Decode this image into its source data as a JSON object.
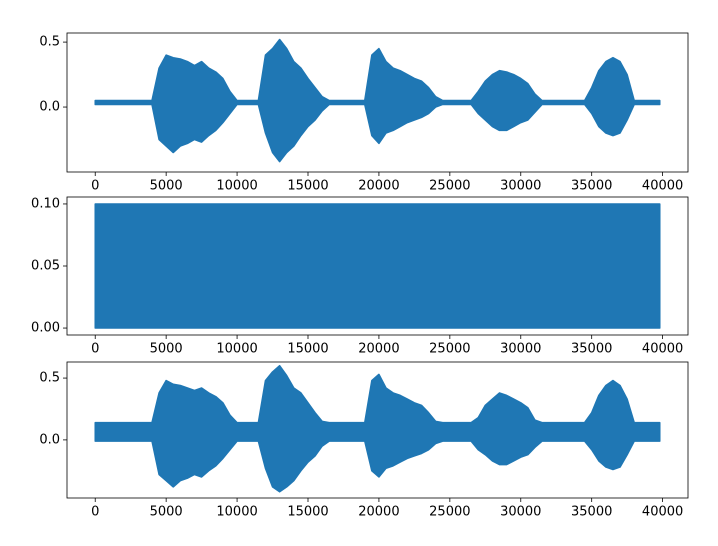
{
  "chart_data": [
    {
      "type": "band",
      "color": "#1f77b4",
      "xlim": [
        -1990,
        41790
      ],
      "xticks": [
        0,
        5000,
        10000,
        15000,
        20000,
        25000,
        30000,
        35000,
        40000
      ],
      "ylim": [
        -0.5,
        0.57
      ],
      "yticks": [
        {
          "value": 0,
          "label": "0.0"
        },
        0.5
      ],
      "x": [
        0,
        500,
        1000,
        1500,
        2000,
        2500,
        3000,
        3500,
        4000,
        4500,
        5000,
        5500,
        6000,
        6500,
        7000,
        7500,
        8000,
        8500,
        9000,
        9500,
        10000,
        10500,
        11000,
        11500,
        12000,
        12500,
        13000,
        13500,
        14000,
        14500,
        15000,
        15500,
        16000,
        16500,
        17000,
        17500,
        18000,
        18500,
        19000,
        19500,
        20000,
        20500,
        21000,
        21500,
        22000,
        22500,
        23000,
        23500,
        24000,
        24500,
        25000,
        25500,
        26000,
        26500,
        27000,
        27500,
        28000,
        28500,
        29000,
        29500,
        30000,
        30500,
        31000,
        31500,
        32000,
        32500,
        33000,
        33500,
        34000,
        34500,
        35000,
        35500,
        36000,
        36500,
        37000,
        37500,
        38000,
        38500,
        39000,
        39500,
        39800
      ],
      "upper": [
        0.05,
        0.05,
        0.05,
        0.05,
        0.05,
        0.05,
        0.05,
        0.05,
        0.05,
        0.3,
        0.4,
        0.38,
        0.37,
        0.35,
        0.32,
        0.35,
        0.3,
        0.27,
        0.22,
        0.12,
        0.05,
        0.05,
        0.05,
        0.05,
        0.4,
        0.45,
        0.52,
        0.45,
        0.35,
        0.3,
        0.22,
        0.15,
        0.08,
        0.05,
        0.05,
        0.05,
        0.05,
        0.05,
        0.05,
        0.4,
        0.45,
        0.35,
        0.3,
        0.28,
        0.25,
        0.22,
        0.2,
        0.15,
        0.08,
        0.05,
        0.05,
        0.05,
        0.05,
        0.05,
        0.12,
        0.2,
        0.25,
        0.28,
        0.27,
        0.25,
        0.22,
        0.18,
        0.1,
        0.05,
        0.05,
        0.05,
        0.05,
        0.05,
        0.05,
        0.05,
        0.15,
        0.28,
        0.35,
        0.38,
        0.35,
        0.25,
        0.05,
        0.05,
        0.05,
        0.05,
        0.05
      ],
      "lower": [
        0.02,
        0.02,
        0.02,
        0.02,
        0.02,
        0.02,
        0.02,
        0.02,
        0.02,
        -0.25,
        -0.3,
        -0.35,
        -0.3,
        -0.28,
        -0.25,
        -0.27,
        -0.22,
        -0.18,
        -0.12,
        -0.05,
        0.02,
        0.02,
        0.02,
        0.02,
        -0.2,
        -0.35,
        -0.42,
        -0.35,
        -0.3,
        -0.22,
        -0.15,
        -0.1,
        -0.03,
        0.02,
        0.02,
        0.02,
        0.02,
        0.02,
        0.02,
        -0.22,
        -0.28,
        -0.2,
        -0.18,
        -0.15,
        -0.12,
        -0.1,
        -0.08,
        -0.05,
        0.0,
        0.02,
        0.02,
        0.02,
        0.02,
        0.02,
        -0.05,
        -0.1,
        -0.15,
        -0.18,
        -0.18,
        -0.15,
        -0.12,
        -0.1,
        -0.04,
        0.02,
        0.02,
        0.02,
        0.02,
        0.02,
        0.02,
        0.02,
        -0.05,
        -0.15,
        -0.2,
        -0.22,
        -0.2,
        -0.1,
        0.02,
        0.02,
        0.02,
        0.02,
        0.02
      ]
    },
    {
      "type": "band",
      "color": "#1f77b4",
      "xlim": [
        -1990,
        41790
      ],
      "xticks": [
        0,
        5000,
        10000,
        15000,
        20000,
        25000,
        30000,
        35000,
        40000
      ],
      "ylim": [
        -0.0056,
        0.1056
      ],
      "yticks": [
        {
          "value": 0,
          "label": "0.00"
        },
        {
          "value": 0.05,
          "label": "0.05"
        },
        {
          "value": 0.1,
          "label": "0.10"
        }
      ],
      "x": [
        0,
        500,
        1000,
        1500,
        2000,
        2500,
        3000,
        3500,
        4000,
        4500,
        5000,
        5500,
        6000,
        6500,
        7000,
        7500,
        8000,
        8500,
        9000,
        9500,
        10000,
        10500,
        11000,
        11500,
        12000,
        12500,
        13000,
        13500,
        14000,
        14500,
        15000,
        15500,
        16000,
        16500,
        17000,
        17500,
        18000,
        18500,
        19000,
        19500,
        20000,
        20500,
        21000,
        21500,
        22000,
        22500,
        23000,
        23500,
        24000,
        24500,
        25000,
        25500,
        26000,
        26500,
        27000,
        27500,
        28000,
        28500,
        29000,
        29500,
        30000,
        30500,
        31000,
        31500,
        32000,
        32500,
        33000,
        33500,
        34000,
        34500,
        35000,
        35500,
        36000,
        36500,
        37000,
        37500,
        38000,
        38500,
        39000,
        39500,
        39800
      ],
      "upper": [
        0.1,
        0.1,
        0.1,
        0.1,
        0.1,
        0.1,
        0.1,
        0.1,
        0.1,
        0.1,
        0.1,
        0.1,
        0.1,
        0.1,
        0.1,
        0.1,
        0.1,
        0.1,
        0.1,
        0.1,
        0.1,
        0.1,
        0.1,
        0.1,
        0.1,
        0.1,
        0.1,
        0.1,
        0.1,
        0.1,
        0.1,
        0.1,
        0.1,
        0.1,
        0.1,
        0.1,
        0.1,
        0.1,
        0.1,
        0.1,
        0.1,
        0.1,
        0.1,
        0.1,
        0.1,
        0.1,
        0.1,
        0.1,
        0.1,
        0.1,
        0.1,
        0.1,
        0.1,
        0.1,
        0.1,
        0.1,
        0.1,
        0.1,
        0.1,
        0.1,
        0.1,
        0.1,
        0.1,
        0.1,
        0.1,
        0.1,
        0.1,
        0.1,
        0.1,
        0.1,
        0.1,
        0.1,
        0.1,
        0.1,
        0.1,
        0.1,
        0.1,
        0.1,
        0.1,
        0.1,
        0.1
      ],
      "lower": [
        0,
        0,
        0,
        0,
        0,
        0,
        0,
        0,
        0,
        0,
        0,
        0,
        0,
        0,
        0,
        0,
        0,
        0,
        0,
        0,
        0,
        0,
        0,
        0,
        0,
        0,
        0,
        0,
        0,
        0,
        0,
        0,
        0,
        0,
        0,
        0,
        0,
        0,
        0,
        0,
        0,
        0,
        0,
        0,
        0,
        0,
        0,
        0,
        0,
        0,
        0,
        0,
        0,
        0,
        0,
        0,
        0,
        0,
        0,
        0,
        0,
        0,
        0,
        0,
        0,
        0,
        0,
        0,
        0,
        0,
        0,
        0,
        0,
        0,
        0,
        0,
        0,
        0,
        0,
        0,
        0
      ]
    },
    {
      "type": "band",
      "color": "#1f77b4",
      "xlim": [
        -1990,
        41790
      ],
      "xticks": [
        0,
        5000,
        10000,
        15000,
        20000,
        25000,
        30000,
        35000,
        40000
      ],
      "ylim": [
        -0.47,
        0.63
      ],
      "yticks": [
        {
          "value": 0,
          "label": "0.0"
        },
        0.5
      ],
      "x": [
        0,
        500,
        1000,
        1500,
        2000,
        2500,
        3000,
        3500,
        4000,
        4500,
        5000,
        5500,
        6000,
        6500,
        7000,
        7500,
        8000,
        8500,
        9000,
        9500,
        10000,
        10500,
        11000,
        11500,
        12000,
        12500,
        13000,
        13500,
        14000,
        14500,
        15000,
        15500,
        16000,
        16500,
        17000,
        17500,
        18000,
        18500,
        19000,
        19500,
        20000,
        20500,
        21000,
        21500,
        22000,
        22500,
        23000,
        23500,
        24000,
        24500,
        25000,
        25500,
        26000,
        26500,
        27000,
        27500,
        28000,
        28500,
        29000,
        29500,
        30000,
        30500,
        31000,
        31500,
        32000,
        32500,
        33000,
        33500,
        34000,
        34500,
        35000,
        35500,
        36000,
        36500,
        37000,
        37500,
        38000,
        38500,
        39000,
        39500,
        39800
      ],
      "upper": [
        0.14,
        0.14,
        0.14,
        0.14,
        0.14,
        0.14,
        0.14,
        0.14,
        0.14,
        0.38,
        0.48,
        0.45,
        0.44,
        0.42,
        0.4,
        0.42,
        0.38,
        0.35,
        0.3,
        0.2,
        0.14,
        0.14,
        0.14,
        0.14,
        0.48,
        0.55,
        0.6,
        0.52,
        0.42,
        0.38,
        0.3,
        0.22,
        0.15,
        0.14,
        0.14,
        0.14,
        0.14,
        0.14,
        0.14,
        0.48,
        0.53,
        0.42,
        0.38,
        0.36,
        0.33,
        0.3,
        0.28,
        0.22,
        0.15,
        0.14,
        0.14,
        0.14,
        0.14,
        0.14,
        0.18,
        0.28,
        0.33,
        0.38,
        0.36,
        0.33,
        0.3,
        0.26,
        0.16,
        0.14,
        0.14,
        0.14,
        0.14,
        0.14,
        0.14,
        0.14,
        0.22,
        0.36,
        0.44,
        0.48,
        0.44,
        0.33,
        0.14,
        0.14,
        0.14,
        0.14,
        0.14
      ],
      "lower": [
        -0.01,
        -0.01,
        -0.01,
        -0.01,
        -0.01,
        -0.01,
        -0.01,
        -0.01,
        -0.01,
        -0.28,
        -0.33,
        -0.38,
        -0.33,
        -0.31,
        -0.28,
        -0.3,
        -0.25,
        -0.21,
        -0.15,
        -0.08,
        -0.01,
        -0.01,
        -0.01,
        -0.01,
        -0.23,
        -0.38,
        -0.42,
        -0.38,
        -0.33,
        -0.25,
        -0.18,
        -0.13,
        -0.05,
        -0.01,
        -0.01,
        -0.01,
        -0.01,
        -0.01,
        -0.01,
        -0.25,
        -0.3,
        -0.23,
        -0.21,
        -0.18,
        -0.15,
        -0.13,
        -0.11,
        -0.08,
        -0.03,
        -0.01,
        -0.01,
        -0.01,
        -0.01,
        -0.01,
        -0.08,
        -0.12,
        -0.17,
        -0.2,
        -0.2,
        -0.17,
        -0.14,
        -0.12,
        -0.06,
        -0.01,
        -0.01,
        -0.01,
        -0.01,
        -0.01,
        -0.01,
        -0.01,
        -0.08,
        -0.17,
        -0.22,
        -0.24,
        -0.22,
        -0.12,
        -0.01,
        -0.01,
        -0.01,
        -0.01,
        -0.01
      ]
    }
  ]
}
